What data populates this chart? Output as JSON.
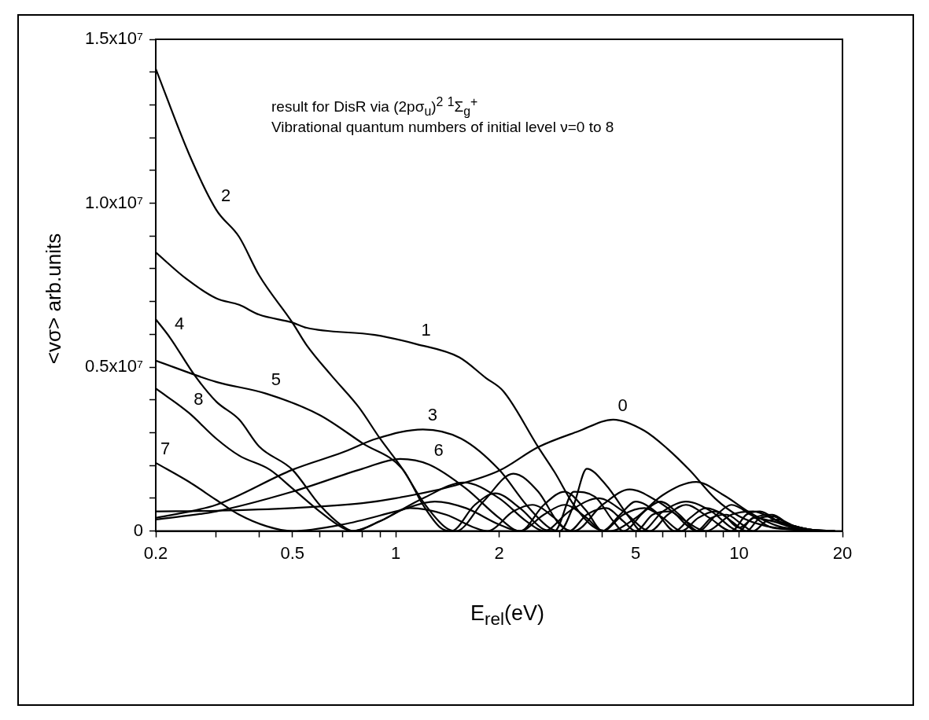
{
  "chart_data": {
    "type": "line",
    "xlabel": "E$_{rel}$(eV)",
    "ylabel": "<vσ> arb.units",
    "log": "x",
    "grid": false,
    "legend": false,
    "marker": "none",
    "line_style": "solid",
    "xlim": [
      0.2,
      20
    ],
    "xticks": [
      0.2,
      {
        "value": 0.3,
        "label": null
      },
      {
        "value": 0.4,
        "label": null
      },
      0.5,
      {
        "value": 0.6,
        "label": null
      },
      {
        "value": 0.7,
        "label": null
      },
      {
        "value": 0.8,
        "label": null
      },
      {
        "value": 0.9,
        "label": null
      },
      1,
      2,
      {
        "value": 3,
        "label": null
      },
      {
        "value": 4,
        "label": null
      },
      5,
      {
        "value": 6,
        "label": null
      },
      {
        "value": 7,
        "label": null
      },
      {
        "value": 8,
        "label": null
      },
      {
        "value": 9,
        "label": null
      },
      10,
      20
    ],
    "ylim": [
      0,
      15000000
    ],
    "yticks": [
      0,
      {
        "value": 1000000,
        "label": null
      },
      {
        "value": 2000000,
        "label": null
      },
      {
        "value": 3000000,
        "label": null
      },
      {
        "value": 4000000,
        "label": null
      },
      {
        "value": 5000000,
        "label": "0.5x10⁷"
      },
      {
        "value": 6000000,
        "label": null
      },
      {
        "value": 7000000,
        "label": null
      },
      {
        "value": 8000000,
        "label": null
      },
      {
        "value": 9000000,
        "label": null
      },
      {
        "value": 10000000,
        "label": "1.0x10⁷"
      },
      {
        "value": 11000000,
        "label": null
      },
      {
        "value": 12000000,
        "label": null
      },
      {
        "value": 13000000,
        "label": null
      },
      {
        "value": 14000000,
        "label": null
      },
      {
        "value": 15000000,
        "label": "1.5x10⁷"
      }
    ],
    "series": [
      {
        "color": "#000000",
        "x": [
          0.2,
          0.3,
          0.5,
          0.8,
          1.0,
          1.5,
          2.0,
          2.6,
          3.4,
          4.3,
          5.3,
          6.2,
          7.2,
          8.5,
          10,
          12,
          15,
          18
        ],
        "values": [
          600000.0,
          620000.0,
          700000.0,
          850000.0,
          1000000.0,
          1400000.0,
          1840000.0,
          2560000.0,
          3040000.0,
          3400000.0,
          3060000.0,
          2500000.0,
          1840000.0,
          1000000.0,
          450000.0,
          150000.0,
          30000.0,
          0
        ]
      },
      {
        "color": "#000000",
        "x": [
          0.2,
          0.245,
          0.3,
          0.35,
          0.4,
          0.5,
          0.55,
          0.87,
          1.15,
          1.53,
          1.83,
          2.06,
          2.6,
          2.9,
          3.3,
          3.8,
          4.2,
          5,
          6,
          7.5,
          9,
          11,
          13,
          16,
          19
        ],
        "values": [
          8500000.0,
          7700000.0,
          7100000.0,
          6900000.0,
          6600000.0,
          6360000.0,
          6200000.0,
          5980000.0,
          5700000.0,
          5300000.0,
          4670000.0,
          4260000.0,
          2560000.0,
          1800000.0,
          800000.0,
          100000.0,
          0,
          400000.0,
          1100000.0,
          1500000.0,
          1100000.0,
          500000.0,
          150000.0,
          20000.0,
          0
        ]
      },
      {
        "color": "#000000",
        "x": [
          0.2,
          0.25,
          0.3,
          0.35,
          0.4,
          0.5,
          0.55,
          0.65,
          0.78,
          0.9,
          1.05,
          1.2,
          1.4,
          1.5,
          1.8,
          2.2,
          2.6,
          3.0,
          3.3,
          4,
          4.8,
          5.8,
          7,
          8,
          9.5,
          11,
          13,
          16,
          19
        ],
        "values": [
          14100000.0,
          11500000.0,
          9800000.0,
          8970000.0,
          7800000.0,
          6360000.0,
          5670000.0,
          4740000.0,
          3780000.0,
          2820000.0,
          1870000.0,
          900000.0,
          100000.0,
          0,
          900000.0,
          1750000.0,
          1200000.0,
          200000.0,
          0,
          800000.0,
          1270000.0,
          900000.0,
          300000.0,
          0,
          500000.0,
          600000.0,
          300000.0,
          50000.0,
          0
        ]
      },
      {
        "color": "#000000",
        "x": [
          0.2,
          0.3,
          0.5,
          0.7,
          0.88,
          1.2,
          1.55,
          2.0,
          2.4,
          2.8,
          3.0,
          3.3,
          3.6,
          4.1,
          4.8,
          5.2,
          6,
          7,
          8.3,
          9.5,
          10,
          11,
          12.5,
          15,
          18
        ],
        "values": [
          400000.0,
          800000.0,
          1870000.0,
          2400000.0,
          2820000.0,
          3100000.0,
          2820000.0,
          1870000.0,
          800000.0,
          100000.0,
          0,
          800000.0,
          1900000.0,
          1400000.0,
          400000.0,
          0,
          600000.0,
          900000.0,
          600000.0,
          100000.0,
          0,
          400000.0,
          300000.0,
          50000.0,
          0
        ]
      },
      {
        "color": "#000000",
        "x": [
          0.2,
          0.22,
          0.26,
          0.3,
          0.35,
          0.4,
          0.5,
          0.6,
          0.7,
          0.75,
          0.9,
          1.2,
          1.58,
          2.0,
          2.4,
          2.7,
          3.2,
          3.9,
          4.6,
          5.5,
          6.2,
          7,
          8.2,
          9.5,
          10.5,
          11.5,
          13,
          15,
          18
        ],
        "values": [
          6460000.0,
          5900000.0,
          4740000.0,
          3950000.0,
          3400000.0,
          2580000.0,
          1870000.0,
          800000.0,
          150000.0,
          0,
          300000.0,
          1000000.0,
          1480000.0,
          1000000.0,
          300000.0,
          0,
          600000.0,
          1000000.0,
          600000.0,
          0,
          500000.0,
          800000.0,
          400000.0,
          0,
          500000.0,
          600000.0,
          300000.0,
          50000.0,
          0
        ]
      },
      {
        "color": "#000000",
        "x": [
          0.2,
          0.3,
          0.42,
          0.6,
          0.8,
          1.05,
          1.2,
          1.35,
          1.45,
          1.7,
          1.95,
          2.3,
          2.7,
          2.9,
          3.3,
          3.8,
          4.3,
          4.6,
          5.3,
          5.9,
          6.7,
          7.6,
          8.6,
          9.5,
          10.8,
          12.5,
          15,
          18
        ],
        "values": [
          5200000.0,
          4550000.0,
          4190000.0,
          3540000.0,
          2680000.0,
          1870000.0,
          800000.0,
          100000.0,
          0,
          800000.0,
          1150000.0,
          700000.0,
          50000.0,
          0,
          1200000.0,
          1050000.0,
          300000.0,
          0,
          600000.0,
          900000.0,
          500000.0,
          0,
          500000.0,
          800000.0,
          500000.0,
          100000.0,
          50000.0,
          0
        ]
      },
      {
        "color": "#000000",
        "x": [
          0.2,
          0.3,
          0.5,
          0.8,
          1.03,
          1.25,
          1.6,
          2.0,
          2.3,
          2.7,
          3.1,
          3.6,
          4.0,
          4.5,
          5.0,
          5.7,
          6.5,
          7.2,
          8,
          9,
          10,
          11,
          12.5,
          14,
          16,
          19
        ],
        "values": [
          350000.0,
          600000.0,
          1200000.0,
          1900000.0,
          2200000.0,
          2030000.0,
          1300000.0,
          400000.0,
          0,
          800000.0,
          1200000.0,
          600000.0,
          0,
          500000.0,
          900000.0,
          600000.0,
          0,
          400000.0,
          700000.0,
          500000.0,
          100000.0,
          400000.0,
          500000.0,
          200000.0,
          50000.0,
          0
        ]
      },
      {
        "color": "#000000",
        "x": [
          0.2,
          0.25,
          0.3,
          0.35,
          0.42,
          0.5,
          0.7,
          1.0,
          1.3,
          1.6,
          2.0,
          2.3,
          2.7,
          3.1,
          3.6,
          4.0,
          4.6,
          5.3,
          6,
          6.8,
          7.6,
          8.5,
          9.5,
          10.5,
          11.5,
          12.5,
          14,
          16,
          19
        ],
        "values": [
          2080000.0,
          1500000.0,
          950000.0,
          500000.0,
          150000.0,
          0,
          200000.0,
          600000.0,
          900000.0,
          700000.0,
          200000.0,
          0,
          500000.0,
          800000.0,
          400000.0,
          0,
          500000.0,
          700000.0,
          400000.0,
          0,
          400000.0,
          600000.0,
          300000.0,
          0,
          400000.0,
          450000.0,
          200000.0,
          50000.0,
          0
        ]
      },
      {
        "color": "#000000",
        "x": [
          0.2,
          0.25,
          0.3,
          0.35,
          0.43,
          0.5,
          0.6,
          0.7,
          0.75,
          0.9,
          1.1,
          1.4,
          1.7,
          1.85,
          2.2,
          2.5,
          2.9,
          3.2,
          3.6,
          4.1,
          4.6,
          5.0,
          5.6,
          6.3,
          7,
          7.5,
          8.3,
          9.2,
          10.2,
          11,
          12,
          13,
          14.5,
          16.5,
          19
        ],
        "values": [
          4350000.0,
          3600000.0,
          2820000.0,
          2300000.0,
          1870000.0,
          1300000.0,
          600000.0,
          100000.0,
          0,
          300000.0,
          700000.0,
          500000.0,
          100000.0,
          0,
          600000.0,
          800000.0,
          400000.0,
          0,
          500000.0,
          700000.0,
          300000.0,
          0,
          500000.0,
          600000.0,
          200000.0,
          0,
          400000.0,
          500000.0,
          200000.0,
          0,
          300000.0,
          350000.0,
          150000.0,
          30000.0,
          0
        ]
      }
    ],
    "annotations": [
      "result for DisR via (2pσ$_{u}$)$^{2}$ $^{1}$Σ$_{g}$$^{+}$",
      "Vibrational quantum numbers of initial level ν=0 to 8",
      {
        "text": "0",
        "x": 4.3,
        "y": 3400000
      },
      {
        "text": "1",
        "x": 1.15,
        "y": 5700000
      },
      {
        "text": "2",
        "x": 0.3,
        "y": 9800000
      },
      {
        "text": "3",
        "x": 1.2,
        "y": 3100000
      },
      {
        "text": "4",
        "x": 0.22,
        "y": 5900000
      },
      {
        "text": "5",
        "x": 0.42,
        "y": 4190000
      },
      {
        "text": "6",
        "x": 1.25,
        "y": 2030000
      },
      {
        "text": "7",
        "x": 0.2,
        "y": 2080000
      },
      {
        "text": "8",
        "x": 0.25,
        "y": 3600000
      }
    ]
  }
}
